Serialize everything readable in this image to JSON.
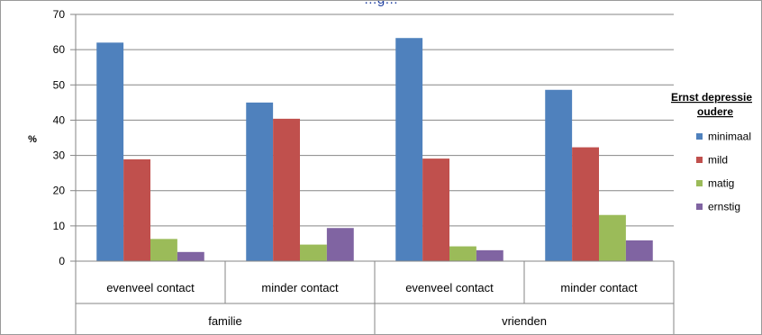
{
  "chart_data": {
    "type": "bar",
    "title": "…g…",
    "ylabel": "%",
    "ylim": [
      0,
      70
    ],
    "yticks": [
      0,
      10,
      20,
      30,
      40,
      50,
      60,
      70
    ],
    "grid": true,
    "legend_position": "right",
    "legend_title_lines": [
      "Ernst depressie",
      "oudere"
    ],
    "groups": [
      {
        "label": "familie",
        "categories": [
          "evenveel contact",
          "minder contact"
        ]
      },
      {
        "label": "vrienden",
        "categories": [
          "evenveel contact",
          "minder contact"
        ]
      }
    ],
    "categories": [
      "evenveel contact",
      "minder contact",
      "evenveel contact",
      "minder contact"
    ],
    "series": [
      {
        "name": "minimaal",
        "color": "#4f81bd",
        "values": [
          62,
          45,
          63.3,
          48.6
        ]
      },
      {
        "name": "mild",
        "color": "#c0504d",
        "values": [
          28.9,
          40.4,
          29.1,
          32.3
        ]
      },
      {
        "name": "matig",
        "color": "#9bbb59",
        "values": [
          6.3,
          4.7,
          4.2,
          13.1
        ]
      },
      {
        "name": "ernstig",
        "color": "#8064a2",
        "values": [
          2.6,
          9.4,
          3.1,
          5.9
        ]
      }
    ]
  }
}
